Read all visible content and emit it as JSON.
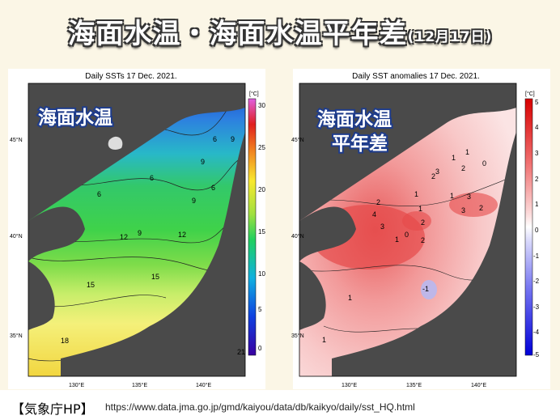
{
  "title": {
    "main": "海面水温・海面水温平年差",
    "date": "(12月17日)"
  },
  "left_map": {
    "header": "Daily SSTs 17 Dec. 2021.",
    "overlay": "海面水温",
    "unit": "[°C]",
    "colorbar_ticks": [
      "30",
      "25",
      "20",
      "15",
      "10",
      "5",
      "0"
    ],
    "contour_labels": [
      "6",
      "9",
      "6",
      "9",
      "6",
      "9",
      "6",
      "12",
      "9",
      "12",
      "15",
      "15",
      "18",
      "21"
    ],
    "lat_labels": [
      "45°N",
      "40°N",
      "35°N"
    ],
    "lon_labels": [
      "130°E",
      "135°E",
      "140°E"
    ]
  },
  "right_map": {
    "header": "Daily SST anomalies 17 Dec. 2021.",
    "overlay_line1": "海面水温",
    "overlay_line2": "平年差",
    "unit": "[°C]",
    "colorbar_ticks": [
      "5",
      "4",
      "3",
      "2",
      "1",
      "0",
      "-1",
      "-2",
      "-3",
      "-4",
      "-5"
    ],
    "contour_labels": [
      "1",
      "3",
      "1",
      "2",
      "0",
      "2",
      "1",
      "2",
      "4",
      "3",
      "1",
      "3",
      "2",
      "3",
      "2",
      "1",
      "1",
      "0",
      "2",
      "1",
      "-1",
      "1"
    ],
    "lat_labels": [
      "45°N",
      "40°N",
      "35°N"
    ],
    "lon_labels": [
      "130°E",
      "135°E",
      "140°E"
    ]
  },
  "footer": {
    "source": "【気象庁HP】",
    "url": "https://www.data.jma.go.jp/gmd/kaiyou/data/db/kaikyo/daily/sst_HQ.html"
  },
  "colors": {
    "land": "#4a4a4a",
    "background": "#fbf6e6",
    "title_text": "#ffffff",
    "overlay_text": "#1e3c8c"
  }
}
